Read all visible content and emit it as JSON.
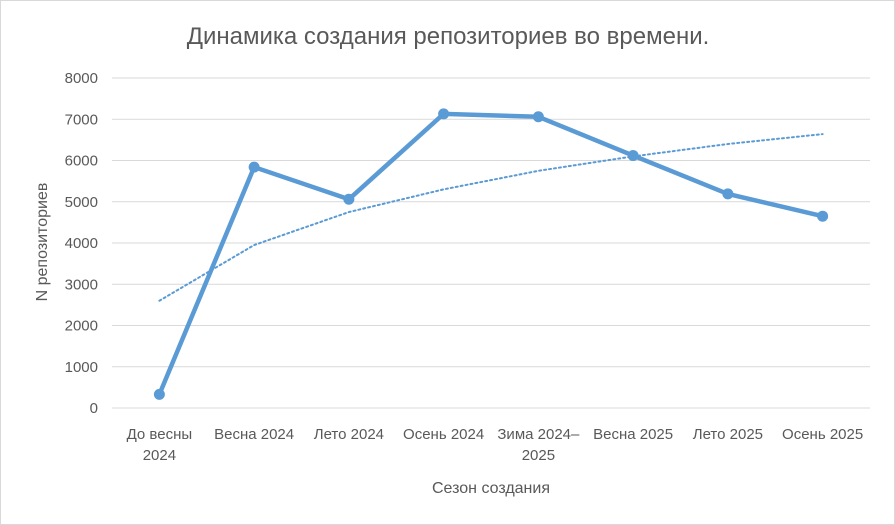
{
  "chart_data": {
    "type": "line",
    "title": "Динамика создания репозиториев во времени.",
    "xlabel": "Сезон создания",
    "ylabel": "N репозиториев",
    "ylim": [
      0,
      8000
    ],
    "yticks": [
      0,
      1000,
      2000,
      3000,
      4000,
      5000,
      6000,
      7000,
      8000
    ],
    "grid": true,
    "categories": [
      [
        "До весны",
        "2024"
      ],
      [
        "Весна 2024"
      ],
      [
        "Лето 2024"
      ],
      [
        "Осень 2024"
      ],
      [
        "Зима 2024–",
        "2025"
      ],
      [
        "Весна 2025"
      ],
      [
        "Лето 2025"
      ],
      [
        "Осень 2025"
      ]
    ],
    "series": [
      {
        "values": [
          330,
          5840,
          5060,
          7130,
          7060,
          6120,
          5190,
          4650
        ],
        "color": "#5b9bd5",
        "style": "solid-with-markers"
      },
      {
        "trend": "logarithmic",
        "values": [
          2600,
          3950,
          4750,
          5300,
          5750,
          6100,
          6400,
          6640
        ],
        "color": "#5b9bd5",
        "style": "dotted"
      }
    ]
  }
}
